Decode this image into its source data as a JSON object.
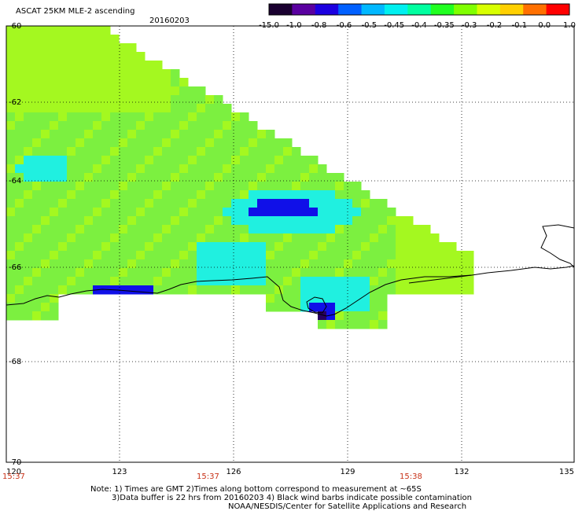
{
  "title": "ASCAT 25KM MLE-2 ascending",
  "date": "20160203",
  "colorbar": {
    "labels": [
      "-15.0",
      "-1.0",
      "-0.8",
      "-0.6",
      "-0.5",
      "-0.45",
      "-0.4",
      "-0.35",
      "-0.3",
      "-0.2",
      "-0.1",
      "0.0",
      "1.0"
    ],
    "colors": [
      "#1a0030",
      "#5a00a0",
      "#1c00e0",
      "#0060ff",
      "#00b8ff",
      "#00f0f0",
      "#00ffa0",
      "#20ff20",
      "#80ff00",
      "#d8ff00",
      "#ffd000",
      "#ff7000",
      "#ff0000"
    ]
  },
  "map": {
    "lat_labels": [
      "-60",
      "-62",
      "-64",
      "-66",
      "-68",
      "-70"
    ],
    "lon_labels": [
      "120",
      "123",
      "126",
      "129",
      "132",
      "135"
    ],
    "time_labels": [
      "15:37",
      "15:37",
      "15:38"
    ]
  },
  "footer": {
    "line1": "Note: 1) Times are GMT 2)Times along bottom correspond to measurement at ~65S",
    "line2": "3)Data buffer is 22 hrs from 20160203 4) Black wind barbs indicate possible contamination",
    "line3": "NOAA/NESDIS/Center for Satellite Applications and Research"
  },
  "colors": {
    "field_green": "#7cf040",
    "field_lightgreen": "#a4f820",
    "field_cyan": "#20f0e0",
    "field_blue": "#1010e8",
    "field_dark": "#280060",
    "coast": "#000000"
  }
}
